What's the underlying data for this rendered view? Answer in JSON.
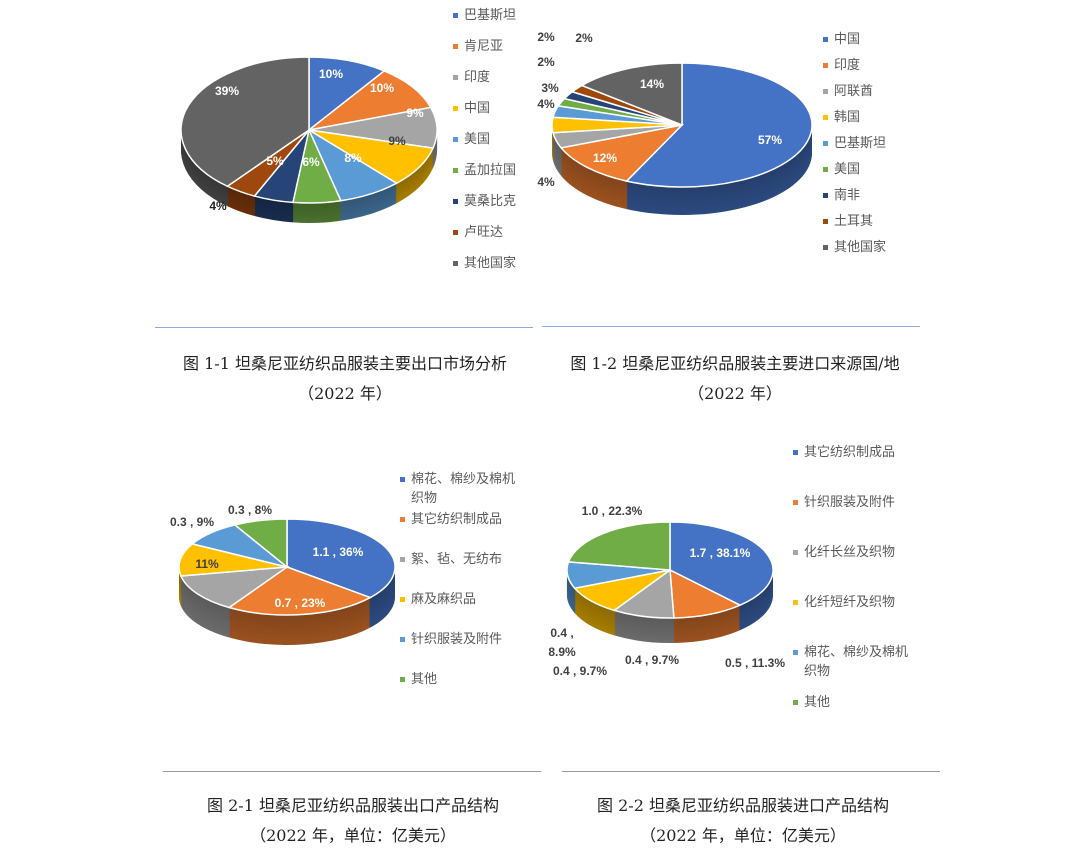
{
  "chart_data": [
    {
      "type": "pie",
      "three_d": true,
      "categories": [
        "巴基斯坦",
        "肯尼亚",
        "印度",
        "中国",
        "美国",
        "孟加拉国",
        "莫桑比克",
        "卢旺达",
        "其他国家"
      ],
      "values": [
        10,
        10,
        9,
        9,
        8,
        6,
        5,
        4,
        39
      ],
      "labels": [
        "10%",
        "10%",
        "9%",
        "9%",
        "8%",
        "6%",
        "5%",
        "4%",
        "39%"
      ],
      "colors": [
        "#4472C4",
        "#ED7D31",
        "#A5A5A5",
        "#FFC000",
        "#5B9BD5",
        "#70AD47",
        "#264478",
        "#9E480E",
        "#636363"
      ],
      "legend": "right",
      "caption": [
        "图 1-1 坦桑尼亚纺织品服装主要出口市场分析",
        "（2022 年）"
      ]
    },
    {
      "type": "pie",
      "three_d": true,
      "categories": [
        "中国",
        "印度",
        "阿联酋",
        "韩国",
        "巴基斯坦",
        "美国",
        "南非",
        "土耳其",
        "其他国家"
      ],
      "values": [
        57,
        12,
        4,
        4,
        3,
        2,
        2,
        2,
        14
      ],
      "labels": [
        "57%",
        "12%",
        "4%",
        "4%",
        "3%",
        "2%",
        "2%",
        "2%",
        "14%"
      ],
      "colors": [
        "#4472C4",
        "#ED7D31",
        "#A5A5A5",
        "#FFC000",
        "#5B9BD5",
        "#70AD47",
        "#264478",
        "#9E480E",
        "#636363"
      ],
      "legend": "right",
      "caption": [
        "图 1-2 坦桑尼亚纺织品服装主要进口来源国/地",
        "（2022 年）"
      ]
    },
    {
      "type": "pie",
      "three_d": true,
      "categories": [
        "棉花、棉纱及棉机织物",
        "其它纺织制成品",
        "絮、毡、无纺布",
        "麻及麻织品",
        "针织服装及附件",
        "其他"
      ],
      "values": [
        36,
        23,
        13,
        11,
        9,
        8
      ],
      "labels": [
        "1.1 , 36%",
        "0.7 , 23%",
        "",
        "11%",
        "0.3 , 9%",
        "0.3 , 8%"
      ],
      "colors": [
        "#4472C4",
        "#ED7D31",
        "#A5A5A5",
        "#FFC000",
        "#5B9BD5",
        "#70AD47"
      ],
      "legend": "right",
      "caption": [
        "图 2-1 坦桑尼亚纺织品服装出口产品结构",
        "（2022 年，单位：亿美元）"
      ]
    },
    {
      "type": "pie",
      "three_d": true,
      "categories": [
        "其它纺织制成品",
        "针织服装及附件",
        "化纤长丝及织物",
        "化纤短纤及织物",
        "棉花、棉纱及棉机织物",
        "其他"
      ],
      "values": [
        38.1,
        11.3,
        9.7,
        9.7,
        8.9,
        22.3
      ],
      "labels": [
        "1.7 , 38.1%",
        "0.5 , 11.3%",
        "0.4 , 9.7%",
        "0.4 , 9.7%",
        "0.4 ,\n8.9%",
        "1.0 , 22.3%"
      ],
      "colors": [
        "#4472C4",
        "#ED7D31",
        "#A5A5A5",
        "#FFC000",
        "#5B9BD5",
        "#70AD47"
      ],
      "legend": "right",
      "caption": [
        "图 2-2 坦桑尼亚纺织品服装进口产品结构",
        "（2022 年，单位：亿美元）"
      ]
    }
  ]
}
